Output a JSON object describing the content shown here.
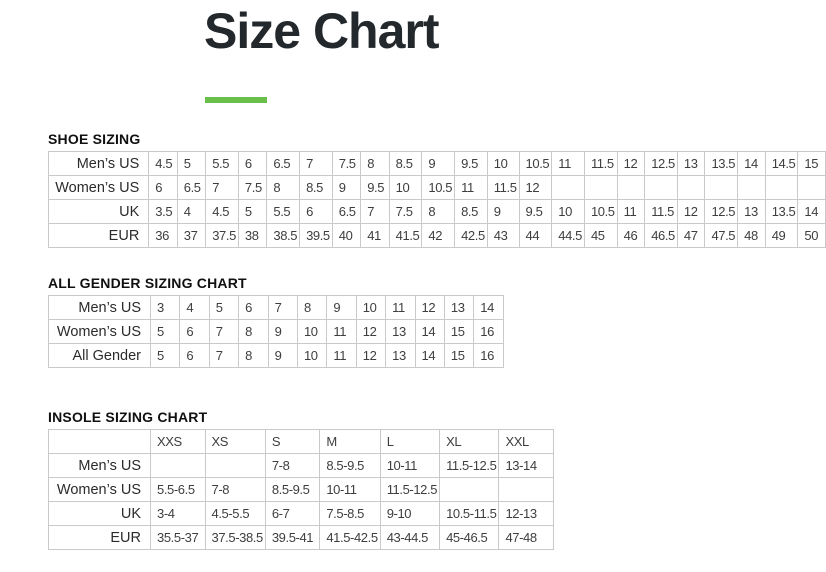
{
  "page": {
    "title": "Size Chart"
  },
  "colors": {
    "accent_green": "#6ABE4A",
    "table_border": "#c9c9c9",
    "heading_text": "#101010",
    "cell_text": "#3e3e3e"
  },
  "shoe_sizing": {
    "heading": "SHOE SIZING",
    "rows": [
      {
        "label": "Men’s US",
        "values": [
          "4.5",
          "5",
          "5.5",
          "6",
          "6.5",
          "7",
          "7.5",
          "8",
          "8.5",
          "9",
          "9.5",
          "10",
          "10.5",
          "11",
          "11.5",
          "12",
          "12.5",
          "13",
          "13.5",
          "14",
          "14.5",
          "15"
        ]
      },
      {
        "label": "Women’s US",
        "values": [
          "6",
          "6.5",
          "7",
          "7.5",
          "8",
          "8.5",
          "9",
          "9.5",
          "10",
          "10.5",
          "11",
          "11.5",
          "12",
          "",
          "",
          "",
          "",
          "",
          "",
          "",
          "",
          ""
        ]
      },
      {
        "label": "UK",
        "values": [
          "3.5",
          "4",
          "4.5",
          "5",
          "5.5",
          "6",
          "6.5",
          "7",
          "7.5",
          "8",
          "8.5",
          "9",
          "9.5",
          "10",
          "10.5",
          "11",
          "11.5",
          "12",
          "12.5",
          "13",
          "13.5",
          "14"
        ]
      },
      {
        "label": "EUR",
        "values": [
          "36",
          "37",
          "37.5",
          "38",
          "38.5",
          "39.5",
          "40",
          "41",
          "41.5",
          "42",
          "42.5",
          "43",
          "44",
          "44.5",
          "45",
          "46",
          "46.5",
          "47",
          "47.5",
          "48",
          "49",
          "50"
        ]
      }
    ]
  },
  "all_gender_sizing": {
    "heading": "ALL GENDER SIZING CHART",
    "rows": [
      {
        "label": "Men’s US",
        "values": [
          "3",
          "4",
          "5",
          "6",
          "7",
          "8",
          "9",
          "10",
          "11",
          "12",
          "13",
          "14"
        ]
      },
      {
        "label": "Women’s US",
        "values": [
          "5",
          "6",
          "7",
          "8",
          "9",
          "10",
          "11",
          "12",
          "13",
          "14",
          "15",
          "16"
        ]
      },
      {
        "label": "All Gender",
        "values": [
          "5",
          "6",
          "7",
          "8",
          "9",
          "10",
          "11",
          "12",
          "13",
          "14",
          "15",
          "16"
        ]
      }
    ]
  },
  "insole_sizing": {
    "heading": "INSOLE SIZING CHART",
    "column_headers": [
      "XXS",
      "XS",
      "S",
      "M",
      "L",
      "XL",
      "XXL"
    ],
    "rows": [
      {
        "label": "Men’s US",
        "values": [
          "",
          "",
          "7-8",
          "8.5-9.5",
          "10-11",
          "11.5-12.5",
          "13-14"
        ]
      },
      {
        "label": "Women’s US",
        "values": [
          "5.5-6.5",
          "7-8",
          "8.5-9.5",
          "10-11",
          "11.5-12.5",
          "",
          ""
        ]
      },
      {
        "label": "UK",
        "values": [
          "3-4",
          "4.5-5.5",
          "6-7",
          "7.5-8.5",
          "9-10",
          "10.5-11.5",
          "12-13"
        ]
      },
      {
        "label": "EUR",
        "values": [
          "35.5-37",
          "37.5-38.5",
          "39.5-41",
          "41.5-42.5",
          "43-44.5",
          "45-46.5",
          "47-48"
        ]
      }
    ]
  }
}
